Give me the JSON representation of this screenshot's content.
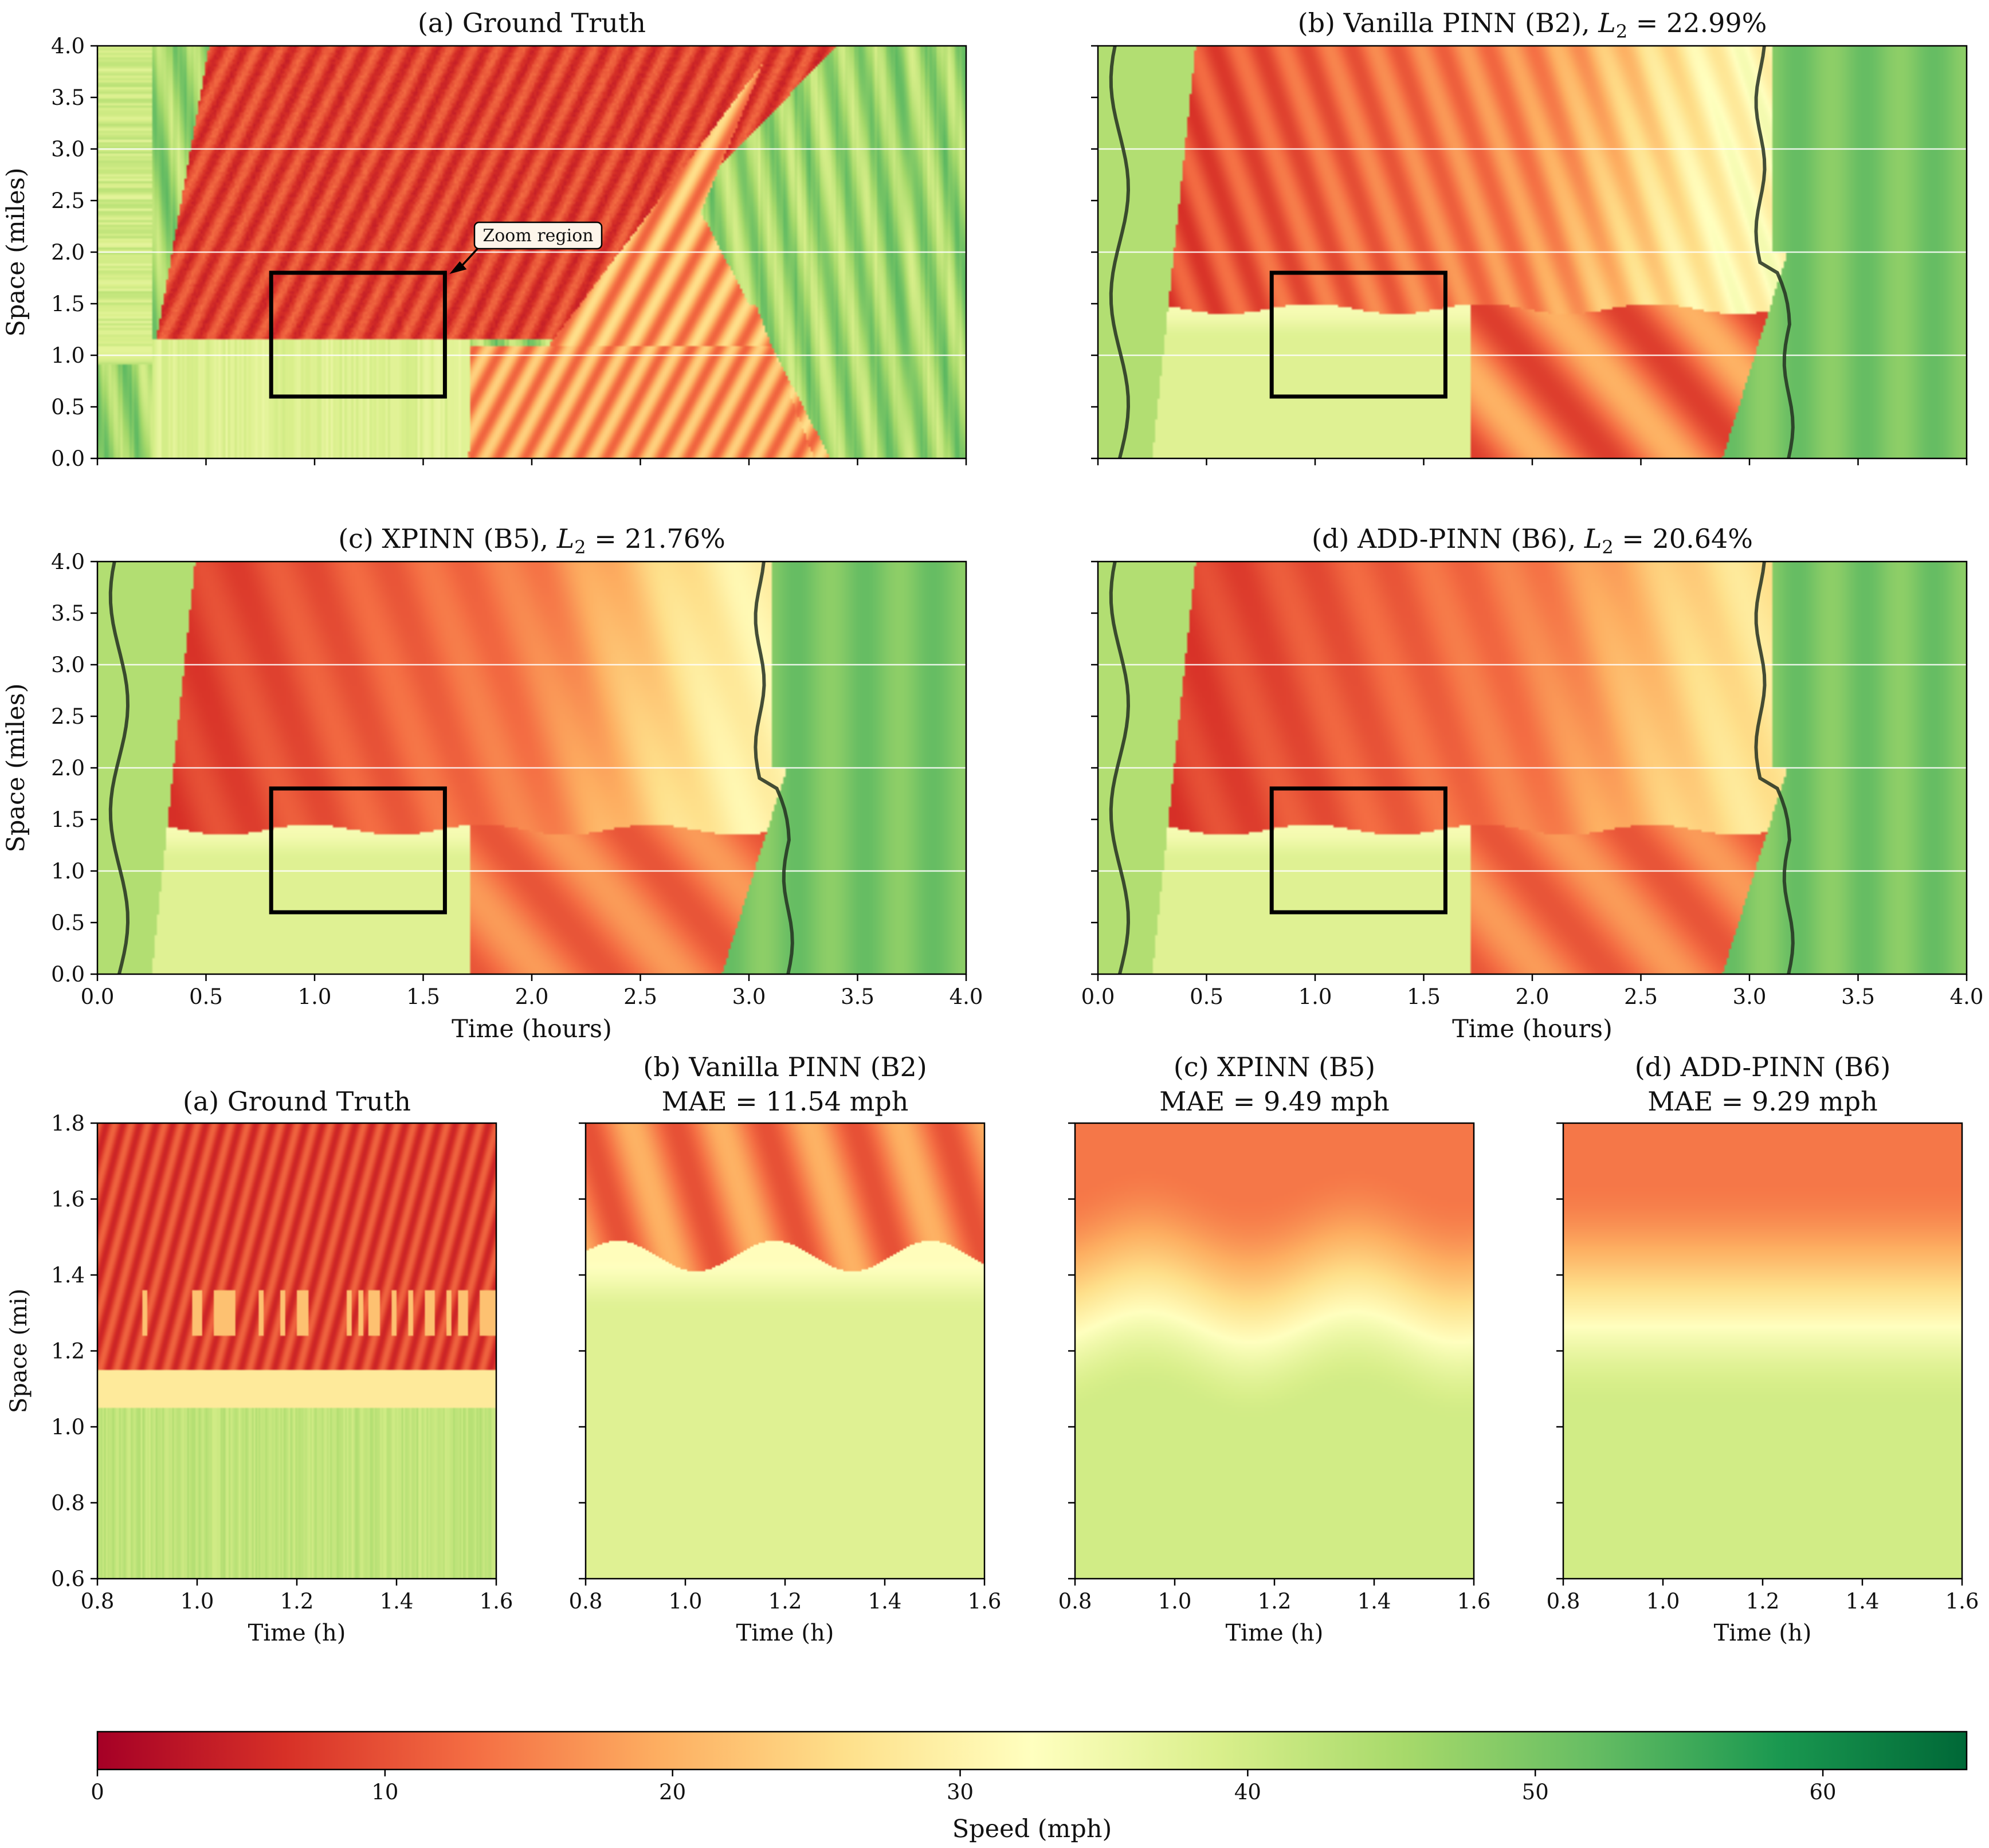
{
  "colorbar": {
    "label": "Speed (mph)",
    "range": [
      0,
      65
    ],
    "ticks": [
      0,
      10,
      20,
      30,
      40,
      50,
      60
    ],
    "colormap": "RdYlGn",
    "stops": [
      "#a50026",
      "#d73027",
      "#f46d43",
      "#fdae61",
      "#fee08b",
      "#ffffbf",
      "#d9ef8b",
      "#a6d96a",
      "#66bd63",
      "#1a9850",
      "#006837"
    ]
  },
  "annotation": {
    "text": "Zoom region"
  },
  "chart_data": [
    {
      "type": "heatmap",
      "title": "(a) Ground Truth",
      "xlabel": "",
      "ylabel": "Space (miles)",
      "xlim": [
        0,
        4
      ],
      "ylim": [
        0,
        4
      ],
      "xticks": [],
      "yticks": [
        "0.0",
        "0.5",
        "1.0",
        "1.5",
        "2.0",
        "2.5",
        "3.0",
        "3.5",
        "4.0"
      ],
      "zoom_box": {
        "t": [
          0.8,
          1.6
        ],
        "x": [
          0.6,
          1.8
        ]
      },
      "contour_level": 50
    },
    {
      "type": "heatmap",
      "title": "(b) Vanilla PINN (B2), ",
      "metric": "L",
      "metric_sub": "2",
      "metric_value": " = 22.99%",
      "xlabel": "",
      "ylabel": "",
      "xlim": [
        0,
        4
      ],
      "ylim": [
        0,
        4
      ],
      "xticks": [],
      "yticks": [],
      "zoom_box": {
        "t": [
          0.8,
          1.6
        ],
        "x": [
          0.6,
          1.8
        ]
      },
      "contour_level": 50
    },
    {
      "type": "heatmap",
      "title": "(c) XPINN (B5), ",
      "metric": "L",
      "metric_sub": "2",
      "metric_value": " = 21.76%",
      "xlabel": "Time (hours)",
      "ylabel": "Space (miles)",
      "xlim": [
        0,
        4
      ],
      "ylim": [
        0,
        4
      ],
      "xticks": [
        "0.0",
        "0.5",
        "1.0",
        "1.5",
        "2.0",
        "2.5",
        "3.0",
        "3.5",
        "4.0"
      ],
      "yticks": [
        "0.0",
        "0.5",
        "1.0",
        "1.5",
        "2.0",
        "2.5",
        "3.0",
        "3.5",
        "4.0"
      ],
      "zoom_box": {
        "t": [
          0.8,
          1.6
        ],
        "x": [
          0.6,
          1.8
        ]
      },
      "contour_level": 50
    },
    {
      "type": "heatmap",
      "title": "(d) ADD-PINN (B6), ",
      "metric": "L",
      "metric_sub": "2",
      "metric_value": " = 20.64%",
      "xlabel": "Time (hours)",
      "ylabel": "",
      "xlim": [
        0,
        4
      ],
      "ylim": [
        0,
        4
      ],
      "xticks": [
        "0.0",
        "0.5",
        "1.0",
        "1.5",
        "2.0",
        "2.5",
        "3.0",
        "3.5",
        "4.0"
      ],
      "yticks": [],
      "zoom_box": {
        "t": [
          0.8,
          1.6
        ],
        "x": [
          0.6,
          1.8
        ]
      },
      "contour_level": 50
    },
    {
      "type": "heatmap",
      "title": "(a) Ground Truth",
      "subtitle": "",
      "xlabel": "Time (h)",
      "ylabel": "Space (mi)",
      "xlim": [
        0.8,
        1.6
      ],
      "ylim": [
        0.6,
        1.8
      ],
      "xticks": [
        "0.8",
        "1.0",
        "1.2",
        "1.4",
        "1.6"
      ],
      "yticks": [
        "0.6",
        "0.8",
        "1.0",
        "1.2",
        "1.4",
        "1.6",
        "1.8"
      ]
    },
    {
      "type": "heatmap",
      "title": "(b) Vanilla PINN (B2)",
      "subtitle": "MAE = 11.54 mph",
      "xlabel": "Time (h)",
      "ylabel": "",
      "xlim": [
        0.8,
        1.6
      ],
      "ylim": [
        0.6,
        1.8
      ],
      "xticks": [
        "0.8",
        "1.0",
        "1.2",
        "1.4",
        "1.6"
      ],
      "yticks": []
    },
    {
      "type": "heatmap",
      "title": "(c) XPINN (B5)",
      "subtitle": "MAE = 9.49 mph",
      "xlabel": "Time (h)",
      "ylabel": "",
      "xlim": [
        0.8,
        1.6
      ],
      "ylim": [
        0.6,
        1.8
      ],
      "xticks": [
        "0.8",
        "1.0",
        "1.2",
        "1.4",
        "1.6"
      ],
      "yticks": []
    },
    {
      "type": "heatmap",
      "title": "(d) ADD-PINN (B6)",
      "subtitle": "MAE = 9.29 mph",
      "xlabel": "Time (h)",
      "ylabel": "",
      "xlim": [
        0.8,
        1.6
      ],
      "ylim": [
        0.6,
        1.8
      ],
      "xticks": [
        "0.8",
        "1.0",
        "1.2",
        "1.4",
        "1.6"
      ],
      "yticks": []
    }
  ]
}
